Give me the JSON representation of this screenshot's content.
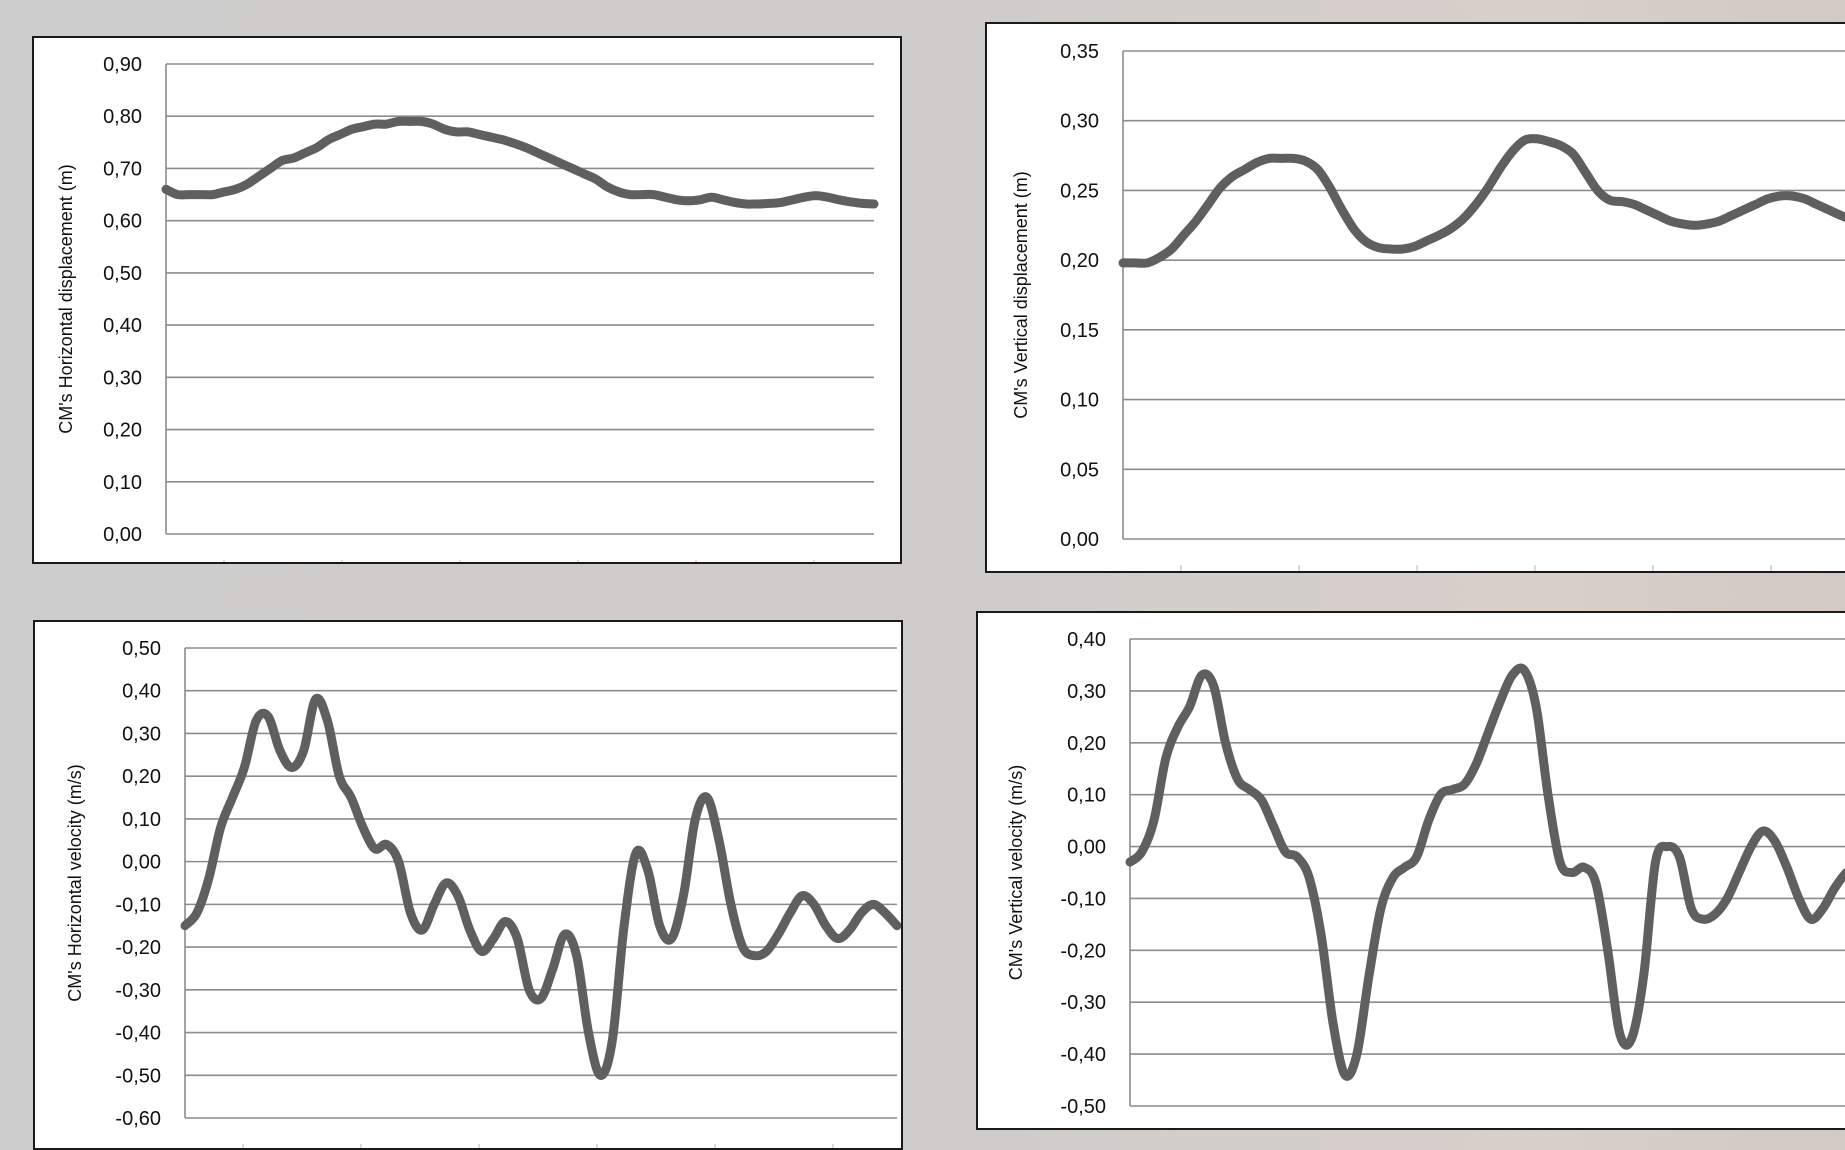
{
  "style": {
    "line_color": "#5f5f5f",
    "grid_color": "#8c8c8c",
    "frame_color": "#1a1a1a"
  },
  "chart_data": [
    {
      "id": "hdisp",
      "type": "line",
      "title": "",
      "xlabel": "",
      "ylabel": "CM's Horizontal displacement (m)",
      "ylim": [
        0,
        0.9
      ],
      "yticks": [
        0,
        0.1,
        0.2,
        0.3,
        0.4,
        0.5,
        0.6,
        0.7,
        0.8,
        0.9
      ],
      "ytick_labels": [
        "0,00",
        "0,10",
        "0,20",
        "0,30",
        "0,40",
        "0,50",
        "0,60",
        "0,70",
        "0,80",
        "0,90"
      ],
      "x": [
        0,
        1,
        2,
        3,
        4,
        5,
        6,
        7,
        8,
        9,
        10,
        11,
        12,
        13,
        14,
        15,
        16,
        17,
        18,
        19,
        20,
        21,
        22,
        23,
        24,
        25,
        26,
        27,
        28,
        29,
        30,
        31,
        32,
        33,
        34,
        35,
        36,
        37,
        38,
        39,
        40,
        41,
        42,
        43,
        44,
        45,
        46,
        47,
        48,
        49,
        50,
        51,
        52,
        53,
        54,
        55,
        56,
        57,
        58,
        59,
        60,
        61
      ],
      "series": [
        {
          "values": [
            0.66,
            0.65,
            0.65,
            0.65,
            0.65,
            0.655,
            0.66,
            0.67,
            0.685,
            0.7,
            0.715,
            0.72,
            0.73,
            0.74,
            0.755,
            0.765,
            0.775,
            0.78,
            0.785,
            0.785,
            0.79,
            0.79,
            0.79,
            0.785,
            0.775,
            0.77,
            0.77,
            0.765,
            0.76,
            0.755,
            0.748,
            0.74,
            0.73,
            0.72,
            0.71,
            0.7,
            0.69,
            0.68,
            0.665,
            0.655,
            0.65,
            0.65,
            0.65,
            0.645,
            0.64,
            0.638,
            0.64,
            0.645,
            0.64,
            0.635,
            0.632,
            0.632,
            0.633,
            0.635,
            0.64,
            0.645,
            0.648,
            0.645,
            0.64,
            0.636,
            0.633,
            0.632
          ]
        }
      ],
      "grid": true
    },
    {
      "id": "vdisp",
      "type": "line",
      "title": "",
      "xlabel": "",
      "ylabel": "CM's Vertical displacement (m)",
      "ylim": [
        0,
        0.35
      ],
      "yticks": [
        0,
        0.05,
        0.1,
        0.15,
        0.2,
        0.25,
        0.3,
        0.35
      ],
      "ytick_labels": [
        "0,00",
        "0,05",
        "0,10",
        "0,15",
        "0,20",
        "0,25",
        "0,30",
        "0,35"
      ],
      "x": [
        0,
        1,
        2,
        3,
        4,
        5,
        6,
        7,
        8,
        9,
        10,
        11,
        12,
        13,
        14,
        15,
        16,
        17,
        18,
        19,
        20,
        21,
        22,
        23,
        24,
        25,
        26,
        27,
        28,
        29,
        30,
        31,
        32,
        33,
        34,
        35,
        36,
        37,
        38,
        39,
        40,
        41,
        42,
        43,
        44,
        45,
        46,
        47,
        48,
        49,
        50,
        51,
        52,
        53,
        54,
        55,
        56,
        57,
        58,
        59,
        60,
        61
      ],
      "series": [
        {
          "values": [
            0.198,
            0.198,
            0.198,
            0.202,
            0.208,
            0.218,
            0.228,
            0.24,
            0.252,
            0.26,
            0.265,
            0.27,
            0.273,
            0.273,
            0.273,
            0.271,
            0.265,
            0.252,
            0.236,
            0.222,
            0.213,
            0.209,
            0.208,
            0.208,
            0.21,
            0.214,
            0.218,
            0.223,
            0.23,
            0.24,
            0.252,
            0.266,
            0.278,
            0.286,
            0.287,
            0.285,
            0.282,
            0.276,
            0.263,
            0.25,
            0.243,
            0.242,
            0.24,
            0.236,
            0.232,
            0.228,
            0.226,
            0.225,
            0.226,
            0.228,
            0.232,
            0.236,
            0.24,
            0.244,
            0.246,
            0.246,
            0.244,
            0.24,
            0.236,
            0.232,
            0.229,
            0.228
          ]
        }
      ],
      "grid": true
    },
    {
      "id": "hvel",
      "type": "line",
      "title": "",
      "xlabel": "",
      "ylabel": "CM's Horizontal velocity (m/s)",
      "ylim": [
        -0.6,
        0.5
      ],
      "yticks": [
        -0.6,
        -0.5,
        -0.4,
        -0.3,
        -0.2,
        -0.1,
        0,
        0.1,
        0.2,
        0.3,
        0.4,
        0.5
      ],
      "ytick_labels": [
        "-0,60",
        "-0,50",
        "-0,40",
        "-0,30",
        "-0,20",
        "-0,10",
        "0,00",
        "0,10",
        "0,20",
        "0,30",
        "0,40",
        "0,50"
      ],
      "x": [
        0,
        1,
        2,
        3,
        4,
        5,
        6,
        7,
        8,
        9,
        10,
        11,
        12,
        13,
        14,
        15,
        16,
        17,
        18,
        19,
        20,
        21,
        22,
        23,
        24,
        25,
        26,
        27,
        28,
        29,
        30,
        31,
        32,
        33,
        34,
        35,
        36,
        37,
        38,
        39,
        40,
        41,
        42,
        43,
        44,
        45,
        46,
        47,
        48,
        49,
        50,
        51,
        52,
        53,
        54,
        55,
        56,
        57,
        58,
        59,
        60
      ],
      "series": [
        {
          "values": [
            -0.15,
            -0.12,
            -0.04,
            0.08,
            0.15,
            0.22,
            0.33,
            0.34,
            0.26,
            0.22,
            0.26,
            0.38,
            0.33,
            0.2,
            0.15,
            0.08,
            0.03,
            0.04,
            0.0,
            -0.12,
            -0.16,
            -0.1,
            -0.05,
            -0.08,
            -0.16,
            -0.21,
            -0.18,
            -0.14,
            -0.18,
            -0.3,
            -0.32,
            -0.25,
            -0.17,
            -0.22,
            -0.4,
            -0.5,
            -0.42,
            -0.15,
            0.02,
            -0.02,
            -0.15,
            -0.18,
            -0.08,
            0.1,
            0.15,
            0.05,
            -0.1,
            -0.2,
            -0.22,
            -0.21,
            -0.17,
            -0.12,
            -0.08,
            -0.1,
            -0.15,
            -0.18,
            -0.16,
            -0.12,
            -0.1,
            -0.12,
            -0.15
          ]
        }
      ],
      "grid": true
    },
    {
      "id": "vvel",
      "type": "line",
      "title": "",
      "xlabel": "",
      "ylabel": "CM's Vertical velocity (m/s)",
      "ylim": [
        -0.5,
        0.4
      ],
      "yticks": [
        -0.5,
        -0.4,
        -0.3,
        -0.2,
        -0.1,
        0,
        0.1,
        0.2,
        0.3,
        0.4
      ],
      "ytick_labels": [
        "-0,50",
        "-0,40",
        "-0,30",
        "-0,20",
        "-0,10",
        "0,00",
        "0,10",
        "0,20",
        "0,30",
        "0,40"
      ],
      "x": [
        0,
        1,
        2,
        3,
        4,
        5,
        6,
        7,
        8,
        9,
        10,
        11,
        12,
        13,
        14,
        15,
        16,
        17,
        18,
        19,
        20,
        21,
        22,
        23,
        24,
        25,
        26,
        27,
        28,
        29,
        30,
        31,
        32,
        33,
        34,
        35,
        36,
        37,
        38,
        39,
        40,
        41,
        42,
        43,
        44,
        45,
        46,
        47,
        48,
        49,
        50,
        51,
        52,
        53,
        54,
        55,
        56,
        57,
        58,
        59,
        60,
        61
      ],
      "series": [
        {
          "values": [
            -0.03,
            -0.01,
            0.05,
            0.17,
            0.23,
            0.27,
            0.33,
            0.31,
            0.2,
            0.13,
            0.11,
            0.09,
            0.04,
            -0.01,
            -0.02,
            -0.06,
            -0.17,
            -0.34,
            -0.44,
            -0.4,
            -0.25,
            -0.12,
            -0.06,
            -0.04,
            -0.02,
            0.05,
            0.1,
            0.11,
            0.12,
            0.16,
            0.22,
            0.28,
            0.33,
            0.34,
            0.27,
            0.1,
            -0.03,
            -0.05,
            -0.04,
            -0.07,
            -0.2,
            -0.36,
            -0.37,
            -0.25,
            -0.03,
            0.0,
            -0.02,
            -0.12,
            -0.14,
            -0.13,
            -0.1,
            -0.05,
            0.0,
            0.03,
            0.01,
            -0.04,
            -0.1,
            -0.14,
            -0.12,
            -0.08,
            -0.05,
            -0.04
          ]
        }
      ],
      "grid": true
    }
  ]
}
